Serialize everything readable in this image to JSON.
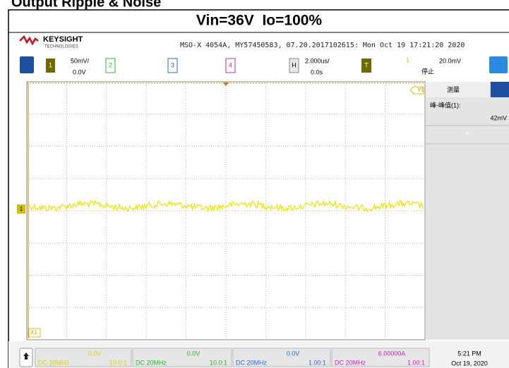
{
  "document_title": "Output Ripple & Noise",
  "header": {
    "title": "Vin=36V  Io=100%"
  },
  "scope": {
    "brand": "KEYSIGHT",
    "brand_sub": "TECHNOLOGIES",
    "info": "MSO-X 4054A, MY57450583, 07.20.2017102615: Mon Oct 19 17:21:20 2020",
    "channels": [
      {
        "number": "1",
        "scale": "50mV/",
        "offset": "0.0V"
      },
      {
        "number": "2"
      },
      {
        "number": "3"
      },
      {
        "number": "4"
      }
    ],
    "horizontal": {
      "label": "H",
      "scale": "2.000us/",
      "delay": "0.0s"
    },
    "trigger": {
      "label": "T",
      "source": "1",
      "level": "20.0mV",
      "status": "停止"
    },
    "markers": {
      "y1": "Y1",
      "x1": "X1",
      "ground": "1"
    },
    "measure": {
      "tab": "测量",
      "name": "峰-峰值(1):",
      "value": "42mV"
    },
    "footer": {
      "channels": [
        {
          "offset": "0.0V",
          "coupling": "DC 20MHz",
          "probe": "10.0:1"
        },
        {
          "offset": "0.0V",
          "coupling": "DC 20MHz",
          "probe": "10.0:1"
        },
        {
          "offset": "0.0V",
          "coupling": "DC 20MHz",
          "probe": "1.00:1"
        },
        {
          "offset": "6.00000A",
          "coupling": "DC 20MHz",
          "probe": "1.00:1"
        }
      ],
      "time": "5:21 PM",
      "date": "Oct 19, 2020"
    }
  }
}
